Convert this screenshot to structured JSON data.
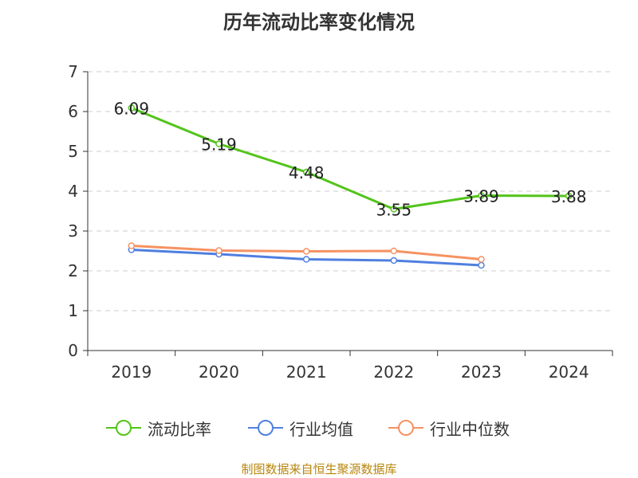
{
  "title": "历年流动比率变化情况",
  "source": "制图数据来自恒生聚源数据库",
  "legend": [
    "流动比率",
    "行业均值",
    "行业中位数"
  ],
  "chart_data": {
    "type": "line",
    "title": "历年流动比率变化情况",
    "categories": [
      "2019",
      "2020",
      "2021",
      "2022",
      "2023",
      "2024"
    ],
    "ylim": [
      0,
      7
    ],
    "yticks": [
      0,
      1,
      2,
      3,
      4,
      5,
      6,
      7
    ],
    "grid": true,
    "legend_position": "bottom",
    "series": [
      {
        "name": "流动比率",
        "color": "#52c41a",
        "values": [
          6.09,
          5.19,
          4.48,
          3.55,
          3.89,
          3.88
        ],
        "labels": [
          "6.09",
          "5.19",
          "4.48",
          "3.55",
          "3.89",
          "3.88"
        ],
        "show_labels": true
      },
      {
        "name": "行业均值",
        "color": "#4f7fdf",
        "values": [
          2.53,
          2.42,
          2.29,
          2.26,
          2.14,
          null
        ],
        "show_labels": false
      },
      {
        "name": "行业中位数",
        "color": "#f59263",
        "values": [
          2.63,
          2.51,
          2.49,
          2.5,
          2.29,
          null
        ],
        "show_labels": false
      }
    ]
  }
}
